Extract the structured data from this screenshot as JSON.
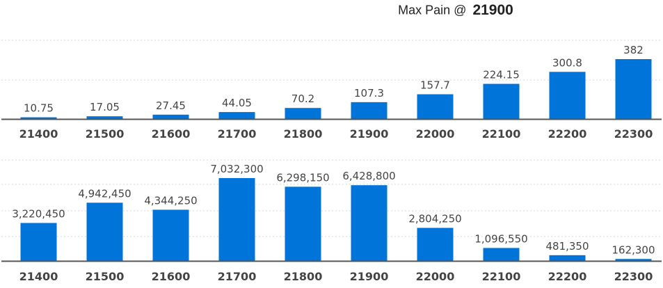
{
  "title": {
    "label": "Max Pain @",
    "strike": "21900"
  },
  "chart_data": [
    {
      "type": "bar",
      "categories": [
        "21400",
        "21500",
        "21600",
        "21700",
        "21800",
        "21900",
        "22000",
        "22100",
        "22200",
        "22300"
      ],
      "values": [
        10.75,
        17.05,
        27.45,
        44.05,
        70.2,
        107.3,
        157.7,
        224.15,
        300.8,
        382
      ],
      "value_labels": [
        "10.75",
        "17.05",
        "27.45",
        "44.05",
        "70.2",
        "107.3",
        "157.7",
        "224.15",
        "300.8",
        "382"
      ],
      "bar_color": "#0074d9",
      "grid": true
    },
    {
      "type": "bar",
      "categories": [
        "21400",
        "21500",
        "21600",
        "21700",
        "21800",
        "21900",
        "22000",
        "22100",
        "22200",
        "22300"
      ],
      "values": [
        3220450,
        4942450,
        4344250,
        7032300,
        6298150,
        6428800,
        2804250,
        1096550,
        481350,
        162300
      ],
      "value_labels": [
        "3,220,450",
        "4,942,450",
        "4,344,250",
        "7,032,300",
        "6,298,150",
        "6,428,800",
        "2,804,250",
        "1,096,550",
        "481,350",
        "162,300"
      ],
      "bar_color": "#0074d9",
      "grid": true
    }
  ]
}
